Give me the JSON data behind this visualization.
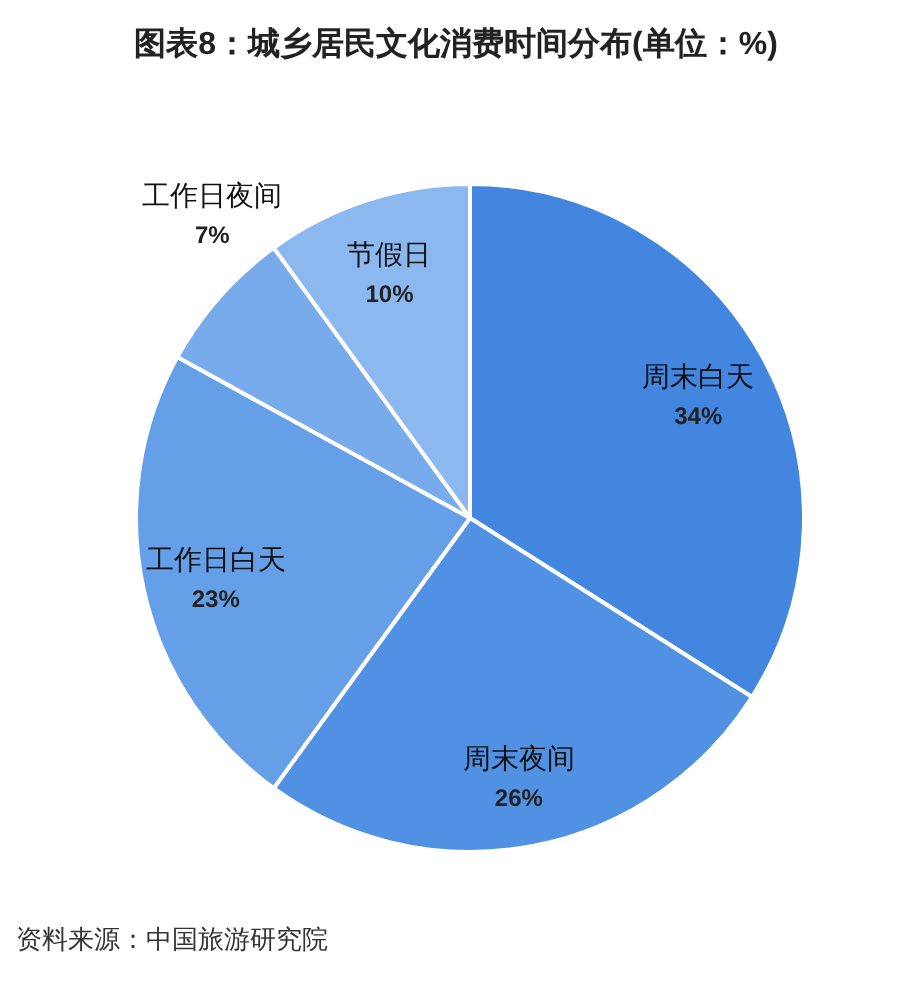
{
  "chart_data": {
    "type": "pie",
    "title": "图表8：城乡居民文化消费时间分布(单位：%)",
    "categories": [
      "周末白天",
      "周末夜间",
      "工作日白天",
      "工作日夜间",
      "节假日"
    ],
    "values": [
      34,
      26,
      23,
      7,
      10
    ],
    "colors": [
      "#4286e0",
      "#5191e4",
      "#659fe8",
      "#77abeb",
      "#8bb8ef"
    ],
    "value_labels": [
      "34%",
      "26%",
      "23%",
      "7%",
      "10%"
    ],
    "annotations": [
      "资料来源：中国旅游研究院"
    ]
  }
}
